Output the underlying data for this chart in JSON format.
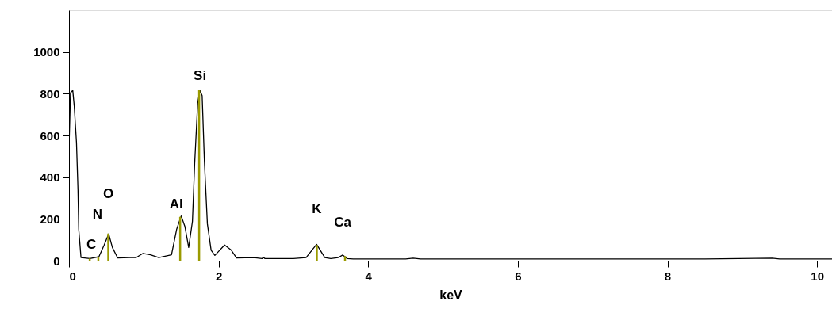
{
  "chart_data": {
    "type": "line",
    "xlabel": "keV",
    "xlim": [
      0,
      10.2
    ],
    "ylim": [
      0,
      1200
    ],
    "xticks": [
      0,
      2,
      4,
      6,
      8,
      10
    ],
    "yticks": [
      0,
      200,
      400,
      600,
      800,
      1000
    ],
    "grid": false,
    "marker": "none",
    "line_style": "solid",
    "series": [
      {
        "color": "#000000",
        "x": [
          0,
          0.02,
          0.05,
          0.07,
          0.1,
          0.12,
          0.13,
          0.16,
          0.28,
          0.4,
          0.47,
          0.53,
          0.58,
          0.65,
          0.81,
          0.9,
          0.99,
          1.09,
          1.2,
          1.37,
          1.44,
          1.5,
          1.55,
          1.6,
          1.65,
          1.68,
          1.72,
          1.75,
          1.78,
          1.81,
          1.85,
          1.9,
          1.95,
          2.08,
          2.17,
          2.24,
          2.47,
          2.58,
          2.6,
          2.62,
          3.0,
          3.17,
          3.31,
          3.42,
          3.5,
          3.6,
          3.66,
          3.72,
          3.8,
          4.5,
          4.6,
          4.7,
          5.5,
          6.5,
          7.5,
          8.5,
          9.4,
          9.5,
          10.2
        ],
        "values": [
          540,
          804,
          816,
          741,
          565,
          339,
          151,
          15,
          10,
          19,
          75,
          128,
          63,
          13,
          15,
          15,
          35,
          28,
          15,
          28,
          151,
          214,
          163,
          63,
          188,
          465,
          754,
          816,
          791,
          477,
          176,
          50,
          25,
          75,
          50,
          13,
          15,
          10,
          15,
          10,
          10,
          15,
          78,
          15,
          10,
          15,
          27,
          10,
          8,
          8,
          12,
          8,
          8,
          8,
          8,
          8,
          12,
          8,
          8
        ]
      },
      {
        "type": "bar",
        "color": "#9a9a00",
        "x": [
          0.277,
          0.392,
          0.525,
          1.486,
          1.74,
          3.313,
          3.69
        ],
        "values": [
          10,
          15,
          130,
          210,
          820,
          75,
          22
        ]
      }
    ],
    "annotations": [
      {
        "text": "C",
        "x": 0.277,
        "y": 10
      },
      {
        "text": "N",
        "x": 0.392,
        "y": 15
      },
      {
        "text": "O",
        "x": 0.525,
        "y": 130
      },
      {
        "text": "Al",
        "x": 1.486,
        "y": 210
      },
      {
        "text": "Si",
        "x": 1.74,
        "y": 820
      },
      {
        "text": "K",
        "x": 3.313,
        "y": 75
      },
      {
        "text": "Ca",
        "x": 3.69,
        "y": 22
      }
    ]
  }
}
